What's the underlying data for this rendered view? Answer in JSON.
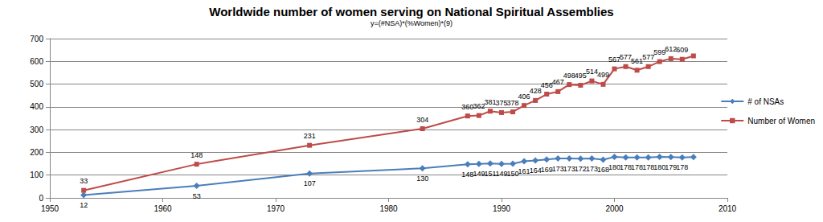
{
  "chart_data": {
    "type": "line",
    "title": "Worldwide number of women serving on National Spiritual Assemblies",
    "subtitle": "y=(#NSA)*(%Women)*(9)",
    "x": [
      1953,
      1963,
      1973,
      1983,
      1987,
      1988,
      1989,
      1990,
      1991,
      1992,
      1993,
      1994,
      1995,
      1996,
      1997,
      1998,
      1999,
      2000,
      2001,
      2002,
      2003,
      2004,
      2005,
      2006,
      2007
    ],
    "series": [
      {
        "name": "# of NSAs",
        "color": "#4a7ebb",
        "marker": "diamond",
        "label_position": "bottom",
        "values": [
          12,
          53,
          107,
          130,
          148,
          149,
          151,
          149,
          150,
          161,
          164,
          169,
          173,
          173,
          172,
          173,
          168,
          180,
          178,
          178,
          178,
          180,
          179,
          178,
          179
        ],
        "value_labels": [
          "12",
          "53",
          "107",
          "130",
          "148",
          "149",
          "151",
          "149",
          "150",
          "161",
          "164",
          "169",
          "173",
          "173",
          "172",
          "173",
          "168",
          "180",
          "178",
          "178",
          "178",
          "180",
          "179",
          "178",
          null
        ]
      },
      {
        "name": "Number of Women",
        "color": "#be4b48",
        "marker": "square",
        "label_position": "top",
        "values": [
          33,
          148,
          231,
          304,
          360,
          362,
          381,
          375,
          378,
          406,
          428,
          456,
          467,
          498,
          495,
          514,
          499,
          567,
          577,
          561,
          577,
          599,
          612,
          609,
          624
        ],
        "value_labels": [
          "33",
          "148",
          "231",
          "304",
          "360",
          "362",
          "381",
          "375",
          "378",
          "406",
          "428",
          "456",
          "467",
          "498",
          "495",
          "514",
          "499",
          "567",
          "577",
          "561",
          "577",
          "599",
          "612",
          "609",
          null
        ]
      }
    ],
    "xlim": [
      1950,
      2010
    ],
    "xticks": [
      1950,
      1960,
      1970,
      1980,
      1990,
      2000,
      2010
    ],
    "ylim": [
      0,
      700
    ],
    "yticks": [
      0,
      100,
      200,
      300,
      400,
      500,
      600,
      700
    ],
    "grid": true,
    "legend": "right",
    "data_labels": true
  }
}
